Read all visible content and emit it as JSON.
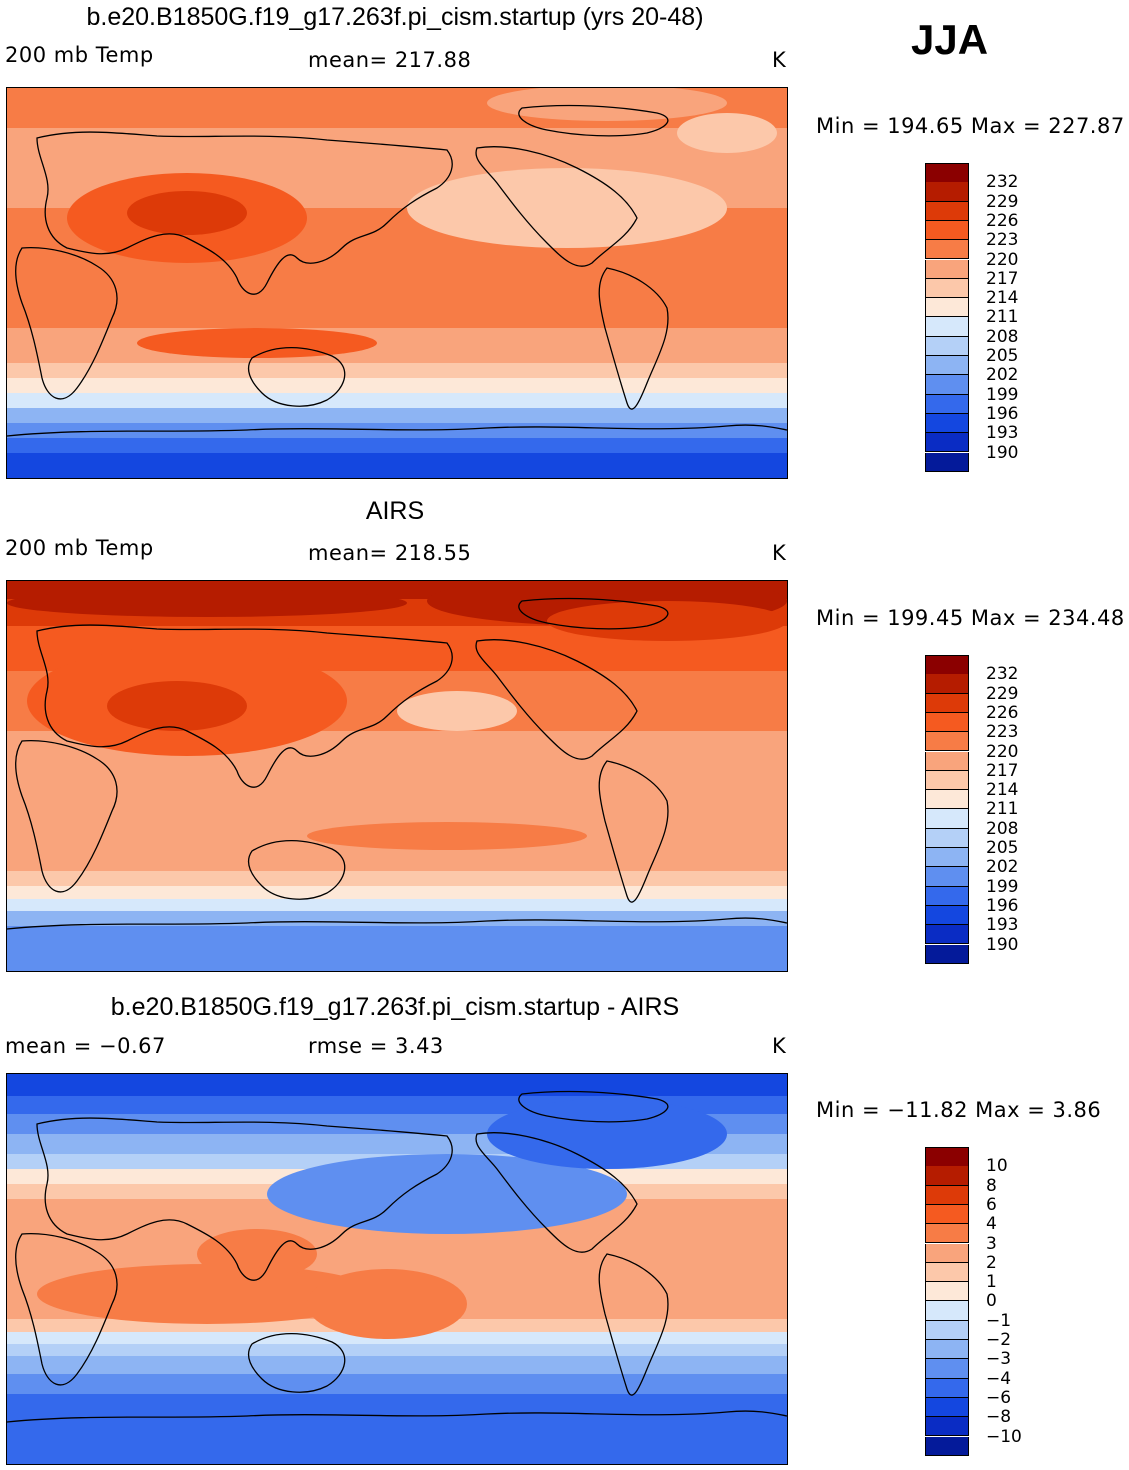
{
  "season": "JJA",
  "panels": [
    {
      "id": "model",
      "title": "b.e20.B1850G.f19_g17.263f.pi_cism.startup (yrs 20-48)",
      "left_text": "200 mb Temp",
      "center_text": "mean=  217.88",
      "units": "K",
      "minmax": "Min = 194.65 Max = 227.87",
      "colorbar_labels": [
        "232",
        "229",
        "226",
        "223",
        "220",
        "217",
        "214",
        "211",
        "208",
        "205",
        "202",
        "199",
        "196",
        "193",
        "190"
      ]
    },
    {
      "id": "obs",
      "title": "AIRS",
      "left_text": "200 mb Temp",
      "center_text": "mean=  218.55",
      "units": "K",
      "minmax": "Min = 199.45 Max = 234.48",
      "colorbar_labels": [
        "232",
        "229",
        "226",
        "223",
        "220",
        "217",
        "214",
        "211",
        "208",
        "205",
        "202",
        "199",
        "196",
        "193",
        "190"
      ]
    },
    {
      "id": "diff",
      "title": "b.e20.B1850G.f19_g17.263f.pi_cism.startup - AIRS",
      "left_text": "mean =   −0.67",
      "center_text": "rmse =     3.43",
      "units": "K",
      "minmax": "Min = −11.82 Max =    3.86",
      "colorbar_labels": [
        "10",
        "8",
        "6",
        "4",
        "3",
        "2",
        "1",
        "0",
        "−1",
        "−2",
        "−3",
        "−4",
        "−6",
        "−8",
        "−10"
      ]
    }
  ],
  "colors": {
    "palette": [
      "#8b0000",
      "#b51c00",
      "#dd3a08",
      "#f55a20",
      "#f77c46",
      "#f9a47c",
      "#fcc8aa",
      "#fde8d8",
      "#d6e8fb",
      "#b4d0f7",
      "#8db4f3",
      "#5f8ff0",
      "#3469ec",
      "#1447e0",
      "#0a2cc4",
      "#041a9a"
    ],
    "coast": "#000000"
  }
}
